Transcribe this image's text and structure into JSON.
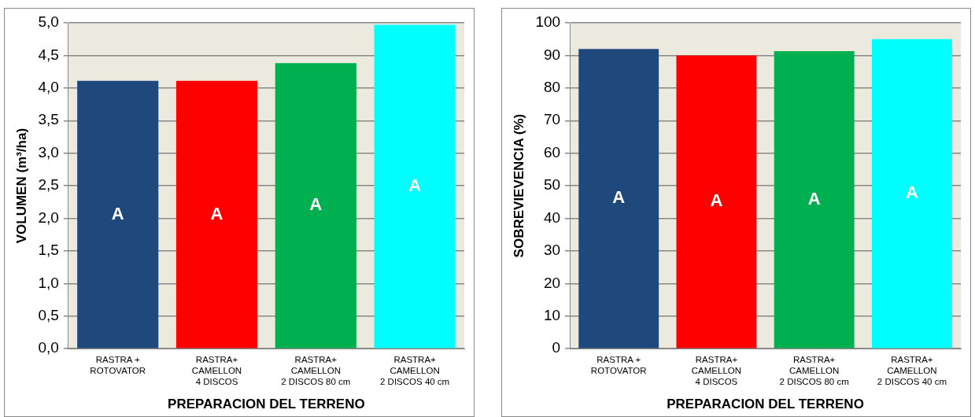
{
  "chart_data": [
    {
      "type": "bar",
      "xlabel": "PREPARACION DEL TERRENO",
      "ylabel": "VOLUMEN (m³/ha)",
      "categories": [
        "RASTRA +\nROTOVATOR",
        "RASTRA+\nCAMELLON\n4 DISCOS",
        "RASTRA+\nCAMELLON\n2 DISCOS 80 cm",
        "RASTRA+\nCAMELLON\n2 DISCOS 40 cm"
      ],
      "values": [
        4.11,
        4.11,
        4.38,
        4.97
      ],
      "colors": [
        "#1f497d",
        "#ff0000",
        "#00b050",
        "#00ffff"
      ],
      "ylim": [
        0,
        5
      ],
      "yticks": [
        {
          "value": 0,
          "label": "0,0"
        },
        {
          "value": 0.5,
          "label": "0,5"
        },
        {
          "value": 1,
          "label": "1,0"
        },
        {
          "value": 1.5,
          "label": "1,5"
        },
        {
          "value": 2,
          "label": "2,0"
        },
        {
          "value": 2.5,
          "label": "2,5"
        },
        {
          "value": 3,
          "label": "3,0"
        },
        {
          "value": 3.5,
          "label": "3,5"
        },
        {
          "value": 4,
          "label": "4,0"
        },
        {
          "value": 4.5,
          "label": "4,5"
        },
        {
          "value": 5,
          "label": "5,0"
        }
      ],
      "grid": "y",
      "legend": false,
      "annotations": [
        "A",
        "A",
        "A",
        "A"
      ]
    },
    {
      "type": "bar",
      "xlabel": "PREPARACION DEL TERRENO",
      "ylabel": "SOBREVIEVENCIA (%)",
      "categories": [
        "RASTRA +\nROTOVATOR",
        "RASTRA+\nCAMELLON\n4 DISCOS",
        "RASTRA+\nCAMELLON\n2 DISCOS 80 cm",
        "RASTRA+\nCAMELLON\n2 DISCOS 40 cm"
      ],
      "values": [
        92,
        90,
        91.3,
        95
      ],
      "colors": [
        "#1f497d",
        "#ff0000",
        "#00b050",
        "#00ffff"
      ],
      "ylim": [
        0,
        100
      ],
      "yticks": [
        0,
        10,
        20,
        30,
        40,
        50,
        60,
        70,
        80,
        90,
        100
      ],
      "grid": "y",
      "legend": false,
      "annotations": [
        "A",
        "A",
        "A",
        "A"
      ]
    }
  ]
}
